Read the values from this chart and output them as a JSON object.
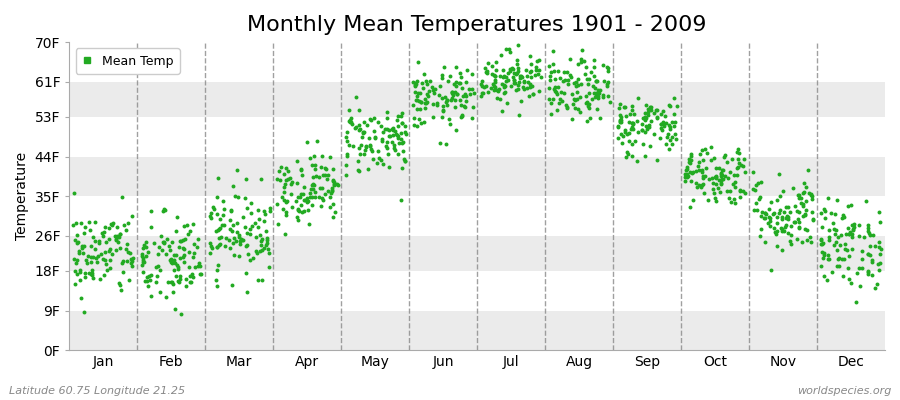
{
  "title": "Monthly Mean Temperatures 1901 - 2009",
  "ylabel": "Temperature",
  "xlabel_bottom_left": "Latitude 60.75 Longitude 21.25",
  "xlabel_bottom_right": "worldspecies.org",
  "legend_label": "Mean Temp",
  "dot_color": "#22aa22",
  "bg_color": "#ffffff",
  "band_color_h": "#ebebeb",
  "yticks": [
    0,
    9,
    18,
    26,
    35,
    44,
    53,
    61,
    70
  ],
  "ytick_labels": [
    "0F",
    "9F",
    "18F",
    "26F",
    "35F",
    "44F",
    "53F",
    "61F",
    "70F"
  ],
  "ylim": [
    0,
    70
  ],
  "months": [
    "Jan",
    "Feb",
    "Mar",
    "Apr",
    "May",
    "Jun",
    "Jul",
    "Aug",
    "Sep",
    "Oct",
    "Nov",
    "Dec"
  ],
  "n_years": 109,
  "monthly_mean_F": [
    22,
    20,
    27,
    37,
    48,
    57,
    62,
    59,
    51,
    40,
    31,
    24
  ],
  "monthly_std_F": [
    5.0,
    5.5,
    5.0,
    4.0,
    4.0,
    3.5,
    3.0,
    3.5,
    3.5,
    3.5,
    4.5,
    5.0
  ],
  "title_fontsize": 16,
  "axis_fontsize": 10,
  "legend_fontsize": 9,
  "dot_size": 8,
  "grid_color": "#888888",
  "grid_alpha": 0.8,
  "grid_linewidth": 1.0
}
